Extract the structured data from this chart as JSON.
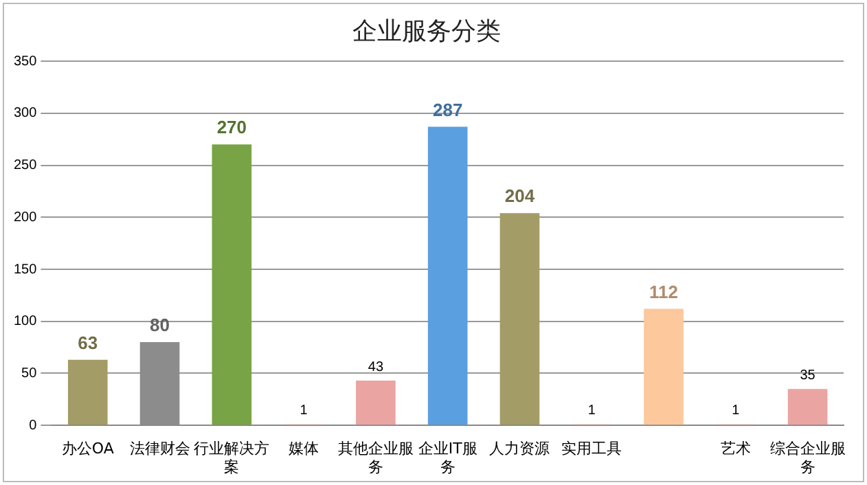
{
  "chart_data": {
    "type": "bar",
    "title": "企业服务分类",
    "categories": [
      "办公OA",
      "法律财会",
      "行业解决方案",
      "媒体",
      "其他企业服务",
      "企业IT服务",
      "人力资源",
      "实用工具",
      null,
      "艺术",
      "综合企业服务"
    ],
    "values": [
      63,
      80,
      270,
      1,
      43,
      287,
      204,
      1,
      112,
      1,
      35
    ],
    "colors": [
      "#a39c67",
      "#8c8c8c",
      "#78a445",
      "#eaa4a2",
      "#eaa4a2",
      "#5a9fe0",
      "#a39c67",
      "#eaa4a2",
      "#fcc89c",
      "#eaa4a2",
      "#eaa4a2"
    ],
    "ylim": [
      0,
      350
    ],
    "yticks": [
      0,
      50,
      100,
      150,
      200,
      250,
      300,
      350
    ],
    "grid": "y",
    "legend": false,
    "data_labels": true
  }
}
